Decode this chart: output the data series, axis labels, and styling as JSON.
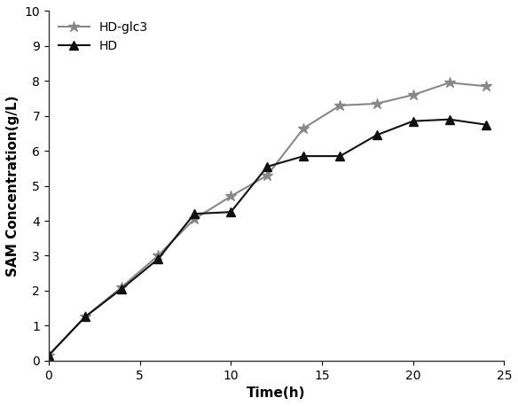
{
  "title": "",
  "xlabel": "Time(h)",
  "ylabel": "SAM Concentration(g/L)",
  "xlim": [
    0,
    25
  ],
  "ylim": [
    0,
    10
  ],
  "xticks": [
    0,
    5,
    10,
    15,
    20,
    25
  ],
  "yticks": [
    0,
    1,
    2,
    3,
    4,
    5,
    6,
    7,
    8,
    9,
    10
  ],
  "hd_glc3": {
    "x": [
      0,
      2,
      4,
      6,
      8,
      10,
      12,
      14,
      16,
      18,
      20,
      22,
      24
    ],
    "y": [
      0.15,
      1.25,
      2.1,
      3.0,
      4.05,
      4.7,
      5.3,
      6.65,
      7.3,
      7.35,
      7.6,
      7.95,
      7.85
    ],
    "label": "HD-glc3",
    "color": "#888888",
    "marker": "*",
    "markersize": 9,
    "linewidth": 1.5
  },
  "hd": {
    "x": [
      0,
      2,
      4,
      6,
      8,
      10,
      12,
      14,
      16,
      18,
      20,
      22,
      24
    ],
    "y": [
      0.15,
      1.25,
      2.05,
      2.9,
      4.2,
      4.25,
      5.55,
      5.85,
      5.85,
      6.45,
      6.85,
      6.9,
      6.75
    ],
    "label": "HD",
    "color": "#111111",
    "marker": "^",
    "markersize": 7,
    "linewidth": 1.5
  },
  "legend_fontsize": 10,
  "axis_label_fontsize": 11,
  "tick_fontsize": 10,
  "background_color": "#ffffff",
  "figure_background": "#ffffff"
}
